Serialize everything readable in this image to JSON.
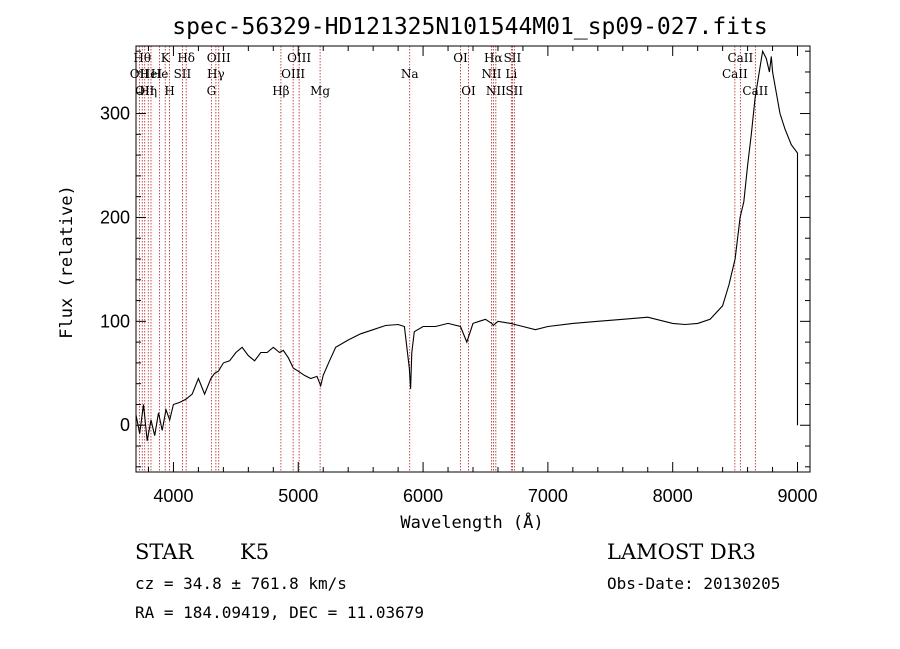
{
  "chart_data": {
    "type": "line",
    "title": "spec-56329-HD121325N101544M01_sp09-027.fits",
    "xlabel": "Wavelength (Å)",
    "ylabel": "Flux (relative)",
    "xlim": [
      3700,
      9100
    ],
    "ylim": [
      -45,
      365
    ],
    "x_ticks": [
      4000,
      5000,
      6000,
      7000,
      8000,
      9000
    ],
    "y_ticks": [
      0,
      100,
      200,
      300
    ],
    "spectrum": {
      "name": "flux",
      "x": [
        3700,
        3730,
        3760,
        3790,
        3820,
        3850,
        3880,
        3910,
        3940,
        3970,
        4000,
        4050,
        4100,
        4150,
        4200,
        4250,
        4300,
        4330,
        4360,
        4400,
        4450,
        4500,
        4550,
        4600,
        4650,
        4700,
        4750,
        4800,
        4850,
        4880,
        4920,
        4960,
        5000,
        5050,
        5100,
        5150,
        5180,
        5200,
        5250,
        5300,
        5400,
        5500,
        5600,
        5700,
        5800,
        5850,
        5890,
        5900,
        5910,
        5930,
        6000,
        6100,
        6200,
        6300,
        6350,
        6400,
        6450,
        6500,
        6550,
        6563,
        6600,
        6700,
        6800,
        6900,
        7000,
        7200,
        7400,
        7600,
        7800,
        8000,
        8100,
        8200,
        8300,
        8400,
        8450,
        8500,
        8540,
        8570,
        8600,
        8630,
        8660,
        8700,
        8720,
        8750,
        8775,
        8790,
        8800,
        8830,
        8860,
        8900,
        8950,
        9000,
        9000
      ],
      "values": [
        10,
        -8,
        20,
        -15,
        5,
        -10,
        12,
        -5,
        15,
        5,
        20,
        22,
        25,
        30,
        45,
        30,
        45,
        50,
        52,
        60,
        62,
        70,
        75,
        67,
        62,
        70,
        70,
        75,
        70,
        72,
        65,
        55,
        52,
        48,
        45,
        47,
        38,
        48,
        62,
        75,
        82,
        88,
        92,
        96,
        97,
        95,
        55,
        35,
        70,
        90,
        95,
        95,
        98,
        95,
        80,
        98,
        100,
        102,
        98,
        96,
        100,
        98,
        95,
        92,
        95,
        98,
        100,
        102,
        104,
        98,
        97,
        98,
        102,
        115,
        135,
        160,
        200,
        215,
        250,
        280,
        315,
        345,
        360,
        353,
        340,
        355,
        340,
        320,
        300,
        285,
        270,
        262,
        0
      ]
    },
    "emission_lines": [
      {
        "wavelength": 3727,
        "label": "OII",
        "row": 2
      },
      {
        "wavelength": 3750,
        "label": "Hθ",
        "row": 1
      },
      {
        "wavelength": 3770,
        "label": "OII",
        "row": 3
      },
      {
        "wavelength": 3798,
        "label": "Hη",
        "row": 3
      },
      {
        "wavelength": 3820,
        "label": "HeI",
        "row": 2
      },
      {
        "wavelength": 3889,
        "label": "He",
        "row": 2
      },
      {
        "wavelength": 3934,
        "label": "K",
        "row": 1
      },
      {
        "wavelength": 3969,
        "label": "H",
        "row": 3
      },
      {
        "wavelength": 4072,
        "label": "SII",
        "row": 2
      },
      {
        "wavelength": 4102,
        "label": "Hδ",
        "row": 1
      },
      {
        "wavelength": 4304,
        "label": "G",
        "row": 3
      },
      {
        "wavelength": 4340,
        "label": "Hγ",
        "row": 2
      },
      {
        "wavelength": 4363,
        "label": "OIII",
        "row": 1
      },
      {
        "wavelength": 4861,
        "label": "Hβ",
        "row": 3
      },
      {
        "wavelength": 4959,
        "label": "OIII",
        "row": 2
      },
      {
        "wavelength": 5007,
        "label": "OIII",
        "row": 1
      },
      {
        "wavelength": 5175,
        "label": "Mg",
        "row": 3
      },
      {
        "wavelength": 5893,
        "label": "Na",
        "row": 2
      },
      {
        "wavelength": 6300,
        "label": "OI",
        "row": 1
      },
      {
        "wavelength": 6364,
        "label": "OI",
        "row": 3
      },
      {
        "wavelength": 6548,
        "label": "NII",
        "row": 2
      },
      {
        "wavelength": 6563,
        "label": "Hα",
        "row": 1
      },
      {
        "wavelength": 6583,
        "label": "NII",
        "row": 3
      },
      {
        "wavelength": 6707,
        "label": "Li",
        "row": 2
      },
      {
        "wavelength": 6716,
        "label": "SII",
        "row": 1
      },
      {
        "wavelength": 6731,
        "label": "SII",
        "row": 3
      },
      {
        "wavelength": 8498,
        "label": "CaII",
        "row": 2
      },
      {
        "wavelength": 8542,
        "label": "CaII",
        "row": 1
      },
      {
        "wavelength": 8662,
        "label": "CaII",
        "row": 3
      }
    ],
    "line_color": "#b22222"
  },
  "info": {
    "object_class": "STAR",
    "subclass": "K5",
    "survey": "LAMOST DR3",
    "redshift": "cz = 34.8 ± 761.8 km/s",
    "obs_date": "Obs-Date: 20130205",
    "coords": "RA = 184.09419, DEC =  11.03679"
  }
}
